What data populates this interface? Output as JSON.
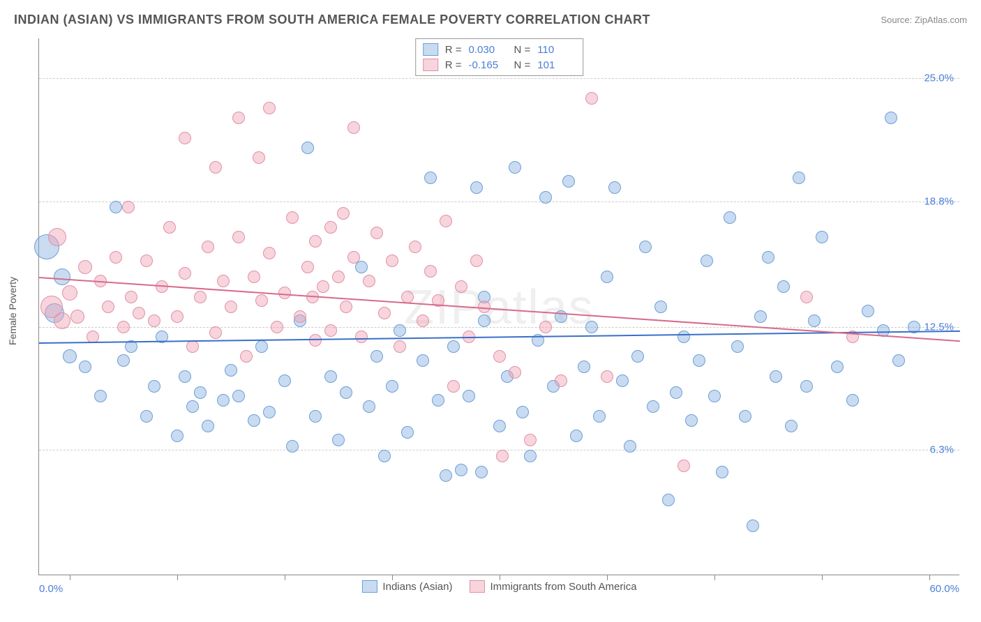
{
  "header": {
    "title": "INDIAN (ASIAN) VS IMMIGRANTS FROM SOUTH AMERICA FEMALE POVERTY CORRELATION CHART",
    "source": "Source: ZipAtlas.com"
  },
  "chart": {
    "type": "scatter",
    "ylabel": "Female Poverty",
    "watermark": "ZIPatlas",
    "background_color": "#ffffff",
    "grid_color": "#cccccc",
    "axis_color": "#888888",
    "label_color": "#555555",
    "value_color": "#4a7fd8",
    "xlim": [
      0,
      60
    ],
    "ylim": [
      0,
      27
    ],
    "yticks": [
      {
        "val": 6.3,
        "label": "6.3%"
      },
      {
        "val": 12.5,
        "label": "12.5%"
      },
      {
        "val": 18.8,
        "label": "18.8%"
      },
      {
        "val": 25.0,
        "label": "25.0%"
      }
    ],
    "xticks_positions": [
      2,
      9,
      16,
      23,
      30,
      37,
      44,
      51,
      58
    ],
    "xaxis_labels": {
      "min": "0.0%",
      "max": "60.0%"
    },
    "series": [
      {
        "name": "Indians (Asian)",
        "fill": "rgba(135,175,225,0.45)",
        "stroke": "#6a9fd8",
        "line_color": "#3a6fc8",
        "R": "0.030",
        "N": "110",
        "regression": {
          "x1": 0,
          "y1": 11.7,
          "x2": 60,
          "y2": 12.3
        },
        "points": [
          {
            "x": 0.5,
            "y": 16.5,
            "r": 18
          },
          {
            "x": 1,
            "y": 13.2,
            "r": 14
          },
          {
            "x": 1.5,
            "y": 15,
            "r": 12
          },
          {
            "x": 2,
            "y": 11,
            "r": 10
          },
          {
            "x": 3,
            "y": 10.5,
            "r": 9
          },
          {
            "x": 4,
            "y": 9,
            "r": 9
          },
          {
            "x": 5,
            "y": 18.5,
            "r": 9
          },
          {
            "x": 5.5,
            "y": 10.8,
            "r": 9
          },
          {
            "x": 6,
            "y": 11.5,
            "r": 9
          },
          {
            "x": 7,
            "y": 8,
            "r": 9
          },
          {
            "x": 7.5,
            "y": 9.5,
            "r": 9
          },
          {
            "x": 8,
            "y": 12,
            "r": 9
          },
          {
            "x": 9,
            "y": 7,
            "r": 9
          },
          {
            "x": 9.5,
            "y": 10,
            "r": 9
          },
          {
            "x": 10,
            "y": 8.5,
            "r": 9
          },
          {
            "x": 10.5,
            "y": 9.2,
            "r": 9
          },
          {
            "x": 11,
            "y": 7.5,
            "r": 9
          },
          {
            "x": 12,
            "y": 8.8,
            "r": 9
          },
          {
            "x": 12.5,
            "y": 10.3,
            "r": 9
          },
          {
            "x": 13,
            "y": 9,
            "r": 9
          },
          {
            "x": 14,
            "y": 7.8,
            "r": 9
          },
          {
            "x": 14.5,
            "y": 11.5,
            "r": 9
          },
          {
            "x": 15,
            "y": 8.2,
            "r": 9
          },
          {
            "x": 16,
            "y": 9.8,
            "r": 9
          },
          {
            "x": 16.5,
            "y": 6.5,
            "r": 9
          },
          {
            "x": 17,
            "y": 12.8,
            "r": 9
          },
          {
            "x": 17.5,
            "y": 21.5,
            "r": 9
          },
          {
            "x": 18,
            "y": 8,
            "r": 9
          },
          {
            "x": 19,
            "y": 10,
            "r": 9
          },
          {
            "x": 19.5,
            "y": 6.8,
            "r": 9
          },
          {
            "x": 20,
            "y": 9.2,
            "r": 9
          },
          {
            "x": 21,
            "y": 15.5,
            "r": 9
          },
          {
            "x": 21.5,
            "y": 8.5,
            "r": 9
          },
          {
            "x": 22,
            "y": 11,
            "r": 9
          },
          {
            "x": 22.5,
            "y": 6,
            "r": 9
          },
          {
            "x": 23,
            "y": 9.5,
            "r": 9
          },
          {
            "x": 23.5,
            "y": 12.3,
            "r": 9
          },
          {
            "x": 24,
            "y": 7.2,
            "r": 9
          },
          {
            "x": 25,
            "y": 10.8,
            "r": 9
          },
          {
            "x": 25.5,
            "y": 20,
            "r": 9
          },
          {
            "x": 26,
            "y": 8.8,
            "r": 9
          },
          {
            "x": 26.5,
            "y": 5,
            "r": 9
          },
          {
            "x": 27,
            "y": 11.5,
            "r": 9
          },
          {
            "x": 27.5,
            "y": 5.3,
            "r": 9
          },
          {
            "x": 28,
            "y": 9,
            "r": 9
          },
          {
            "x": 28.5,
            "y": 19.5,
            "r": 9
          },
          {
            "x": 28.8,
            "y": 5.2,
            "r": 9
          },
          {
            "x": 29,
            "y": 12.8,
            "r": 9
          },
          {
            "x": 29,
            "y": 14,
            "r": 9
          },
          {
            "x": 30,
            "y": 7.5,
            "r": 9
          },
          {
            "x": 30.5,
            "y": 10,
            "r": 9
          },
          {
            "x": 31,
            "y": 20.5,
            "r": 9
          },
          {
            "x": 31.5,
            "y": 8.2,
            "r": 9
          },
          {
            "x": 32,
            "y": 6,
            "r": 9
          },
          {
            "x": 32.5,
            "y": 11.8,
            "r": 9
          },
          {
            "x": 33,
            "y": 19,
            "r": 9
          },
          {
            "x": 33.5,
            "y": 9.5,
            "r": 9
          },
          {
            "x": 34,
            "y": 13,
            "r": 9
          },
          {
            "x": 34.5,
            "y": 19.8,
            "r": 9
          },
          {
            "x": 35,
            "y": 7,
            "r": 9
          },
          {
            "x": 35.5,
            "y": 10.5,
            "r": 9
          },
          {
            "x": 36,
            "y": 12.5,
            "r": 9
          },
          {
            "x": 36.5,
            "y": 8,
            "r": 9
          },
          {
            "x": 37,
            "y": 15,
            "r": 9
          },
          {
            "x": 37.5,
            "y": 19.5,
            "r": 9
          },
          {
            "x": 38,
            "y": 9.8,
            "r": 9
          },
          {
            "x": 38.5,
            "y": 6.5,
            "r": 9
          },
          {
            "x": 39,
            "y": 11,
            "r": 9
          },
          {
            "x": 39.5,
            "y": 16.5,
            "r": 9
          },
          {
            "x": 40,
            "y": 8.5,
            "r": 9
          },
          {
            "x": 40.5,
            "y": 13.5,
            "r": 9
          },
          {
            "x": 41,
            "y": 3.8,
            "r": 9
          },
          {
            "x": 41.5,
            "y": 9.2,
            "r": 9
          },
          {
            "x": 42,
            "y": 12,
            "r": 9
          },
          {
            "x": 42.5,
            "y": 7.8,
            "r": 9
          },
          {
            "x": 43,
            "y": 10.8,
            "r": 9
          },
          {
            "x": 43.5,
            "y": 15.8,
            "r": 9
          },
          {
            "x": 44,
            "y": 9,
            "r": 9
          },
          {
            "x": 44.5,
            "y": 5.2,
            "r": 9
          },
          {
            "x": 45,
            "y": 18,
            "r": 9
          },
          {
            "x": 45.5,
            "y": 11.5,
            "r": 9
          },
          {
            "x": 46,
            "y": 8,
            "r": 9
          },
          {
            "x": 46.5,
            "y": 2.5,
            "r": 9
          },
          {
            "x": 47,
            "y": 13,
            "r": 9
          },
          {
            "x": 47.5,
            "y": 16,
            "r": 9
          },
          {
            "x": 48,
            "y": 10,
            "r": 9
          },
          {
            "x": 48.5,
            "y": 14.5,
            "r": 9
          },
          {
            "x": 49,
            "y": 7.5,
            "r": 9
          },
          {
            "x": 49.5,
            "y": 20,
            "r": 9
          },
          {
            "x": 50,
            "y": 9.5,
            "r": 9
          },
          {
            "x": 50.5,
            "y": 12.8,
            "r": 9
          },
          {
            "x": 51,
            "y": 17,
            "r": 9
          },
          {
            "x": 52,
            "y": 10.5,
            "r": 9
          },
          {
            "x": 53,
            "y": 8.8,
            "r": 9
          },
          {
            "x": 54,
            "y": 13.3,
            "r": 9
          },
          {
            "x": 55,
            "y": 12.3,
            "r": 9
          },
          {
            "x": 55.5,
            "y": 23,
            "r": 9
          },
          {
            "x": 56,
            "y": 10.8,
            "r": 9
          },
          {
            "x": 57,
            "y": 12.5,
            "r": 9
          }
        ]
      },
      {
        "name": "Immigrants from South America",
        "fill": "rgba(240,160,180,0.45)",
        "stroke": "#e090a8",
        "line_color": "#d86a8a",
        "R": "-0.165",
        "N": "101",
        "regression": {
          "x1": 0,
          "y1": 15.0,
          "x2": 60,
          "y2": 11.8
        },
        "points": [
          {
            "x": 0.8,
            "y": 13.5,
            "r": 16
          },
          {
            "x": 1.2,
            "y": 17,
            "r": 13
          },
          {
            "x": 1.5,
            "y": 12.8,
            "r": 12
          },
          {
            "x": 2,
            "y": 14.2,
            "r": 11
          },
          {
            "x": 2.5,
            "y": 13,
            "r": 10
          },
          {
            "x": 3,
            "y": 15.5,
            "r": 10
          },
          {
            "x": 3.5,
            "y": 12,
            "r": 9
          },
          {
            "x": 4,
            "y": 14.8,
            "r": 9
          },
          {
            "x": 4.5,
            "y": 13.5,
            "r": 9
          },
          {
            "x": 5,
            "y": 16,
            "r": 9
          },
          {
            "x": 5.5,
            "y": 12.5,
            "r": 9
          },
          {
            "x": 5.8,
            "y": 18.5,
            "r": 9
          },
          {
            "x": 6,
            "y": 14,
            "r": 9
          },
          {
            "x": 6.5,
            "y": 13.2,
            "r": 9
          },
          {
            "x": 7,
            "y": 15.8,
            "r": 9
          },
          {
            "x": 7.5,
            "y": 12.8,
            "r": 9
          },
          {
            "x": 8,
            "y": 14.5,
            "r": 9
          },
          {
            "x": 8.5,
            "y": 17.5,
            "r": 9
          },
          {
            "x": 9,
            "y": 13,
            "r": 9
          },
          {
            "x": 9.5,
            "y": 22,
            "r": 9
          },
          {
            "x": 9.5,
            "y": 15.2,
            "r": 9
          },
          {
            "x": 10,
            "y": 11.5,
            "r": 9
          },
          {
            "x": 10.5,
            "y": 14,
            "r": 9
          },
          {
            "x": 11,
            "y": 16.5,
            "r": 9
          },
          {
            "x": 11.5,
            "y": 20.5,
            "r": 9
          },
          {
            "x": 11.5,
            "y": 12.2,
            "r": 9
          },
          {
            "x": 12,
            "y": 14.8,
            "r": 9
          },
          {
            "x": 12.5,
            "y": 13.5,
            "r": 9
          },
          {
            "x": 13,
            "y": 17,
            "r": 9
          },
          {
            "x": 13,
            "y": 23,
            "r": 9
          },
          {
            "x": 13.5,
            "y": 11,
            "r": 9
          },
          {
            "x": 14,
            "y": 15,
            "r": 9
          },
          {
            "x": 14.3,
            "y": 21,
            "r": 9
          },
          {
            "x": 14.5,
            "y": 13.8,
            "r": 9
          },
          {
            "x": 15,
            "y": 23.5,
            "r": 9
          },
          {
            "x": 15,
            "y": 16.2,
            "r": 9
          },
          {
            "x": 15.5,
            "y": 12.5,
            "r": 9
          },
          {
            "x": 16,
            "y": 14.2,
            "r": 9
          },
          {
            "x": 16.5,
            "y": 18,
            "r": 9
          },
          {
            "x": 17,
            "y": 13,
            "r": 9
          },
          {
            "x": 17.5,
            "y": 15.5,
            "r": 9
          },
          {
            "x": 17.8,
            "y": 14,
            "r": 9
          },
          {
            "x": 18,
            "y": 11.8,
            "r": 9
          },
          {
            "x": 18,
            "y": 16.8,
            "r": 9
          },
          {
            "x": 18.5,
            "y": 14.5,
            "r": 9
          },
          {
            "x": 19,
            "y": 17.5,
            "r": 9
          },
          {
            "x": 19,
            "y": 12.3,
            "r": 9
          },
          {
            "x": 19.5,
            "y": 15,
            "r": 9
          },
          {
            "x": 19.8,
            "y": 18.2,
            "r": 9
          },
          {
            "x": 20,
            "y": 13.5,
            "r": 9
          },
          {
            "x": 20.5,
            "y": 22.5,
            "r": 9
          },
          {
            "x": 20.5,
            "y": 16,
            "r": 9
          },
          {
            "x": 21,
            "y": 12,
            "r": 9
          },
          {
            "x": 21.5,
            "y": 14.8,
            "r": 9
          },
          {
            "x": 22,
            "y": 17.2,
            "r": 9
          },
          {
            "x": 22.5,
            "y": 13.2,
            "r": 9
          },
          {
            "x": 23,
            "y": 15.8,
            "r": 9
          },
          {
            "x": 23.5,
            "y": 11.5,
            "r": 9
          },
          {
            "x": 24,
            "y": 14,
            "r": 9
          },
          {
            "x": 24.5,
            "y": 16.5,
            "r": 9
          },
          {
            "x": 25,
            "y": 12.8,
            "r": 9
          },
          {
            "x": 25.5,
            "y": 15.3,
            "r": 9
          },
          {
            "x": 26,
            "y": 13.8,
            "r": 9
          },
          {
            "x": 26.5,
            "y": 17.8,
            "r": 9
          },
          {
            "x": 27,
            "y": 9.5,
            "r": 9
          },
          {
            "x": 27.5,
            "y": 14.5,
            "r": 9
          },
          {
            "x": 28,
            "y": 12,
            "r": 9
          },
          {
            "x": 28.5,
            "y": 15.8,
            "r": 9
          },
          {
            "x": 29,
            "y": 13.5,
            "r": 9
          },
          {
            "x": 30,
            "y": 11,
            "r": 9
          },
          {
            "x": 30.2,
            "y": 6,
            "r": 9
          },
          {
            "x": 31,
            "y": 10.2,
            "r": 9
          },
          {
            "x": 32,
            "y": 6.8,
            "r": 9
          },
          {
            "x": 33,
            "y": 12.5,
            "r": 9
          },
          {
            "x": 34,
            "y": 9.8,
            "r": 9
          },
          {
            "x": 36,
            "y": 24,
            "r": 9
          },
          {
            "x": 37,
            "y": 10,
            "r": 9
          },
          {
            "x": 42,
            "y": 5.5,
            "r": 9
          },
          {
            "x": 50,
            "y": 14,
            "r": 9
          },
          {
            "x": 53,
            "y": 12,
            "r": 9
          }
        ]
      }
    ],
    "bottom_legend": [
      {
        "label": "Indians (Asian)",
        "fill": "rgba(135,175,225,0.45)",
        "stroke": "#6a9fd8"
      },
      {
        "label": "Immigrants from South America",
        "fill": "rgba(240,160,180,0.45)",
        "stroke": "#e090a8"
      }
    ]
  }
}
